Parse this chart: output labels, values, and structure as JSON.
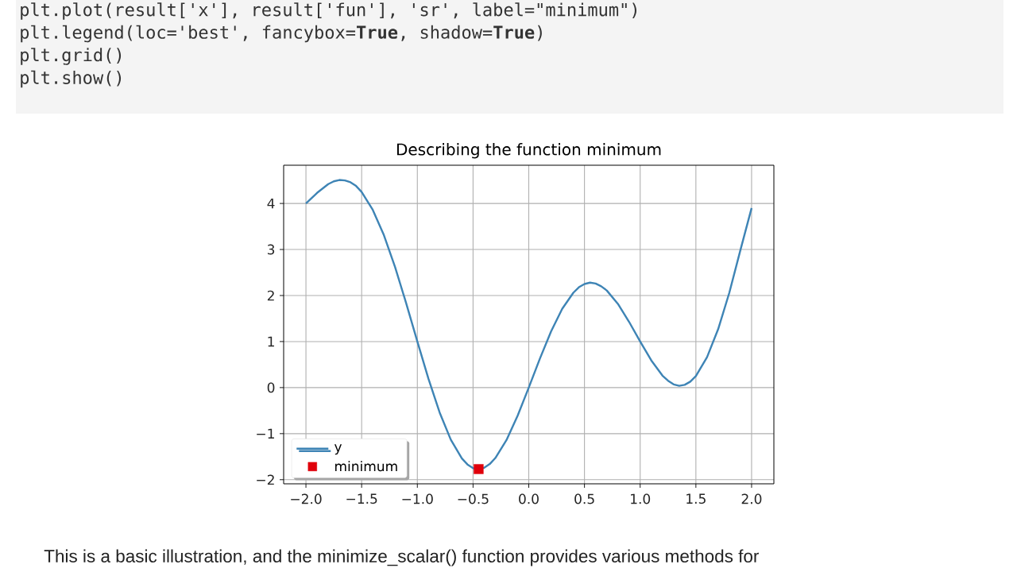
{
  "chart_data": {
    "type": "line",
    "title": "Describing the function minimum",
    "series": [
      {
        "name": "y",
        "color": "#3e84b5",
        "marker": "none",
        "line_style": "solid",
        "x": [
          -2.0,
          -1.9,
          -1.8,
          -1.75,
          -1.7,
          -1.65,
          -1.6,
          -1.55,
          -1.5,
          -1.4,
          -1.3,
          -1.2,
          -1.1,
          -1.0,
          -0.9,
          -0.8,
          -0.7,
          -0.6,
          -0.55,
          -0.5,
          -0.45,
          -0.4,
          -0.35,
          -0.3,
          -0.2,
          -0.1,
          0.0,
          0.1,
          0.2,
          0.3,
          0.4,
          0.45,
          0.5,
          0.55,
          0.6,
          0.65,
          0.7,
          0.8,
          0.9,
          1.0,
          1.1,
          1.2,
          1.25,
          1.3,
          1.35,
          1.4,
          1.45,
          1.5,
          1.6,
          1.7,
          1.8,
          1.9,
          2.0
        ],
        "values": [
          4.0,
          4.23,
          4.42,
          4.48,
          4.51,
          4.5,
          4.46,
          4.38,
          4.25,
          3.86,
          3.31,
          2.62,
          1.83,
          1.0,
          0.19,
          -0.54,
          -1.13,
          -1.54,
          -1.67,
          -1.75,
          -1.77,
          -1.74,
          -1.66,
          -1.53,
          -1.14,
          -0.61,
          0.0,
          0.63,
          1.22,
          1.71,
          2.06,
          2.18,
          2.25,
          2.28,
          2.26,
          2.2,
          2.11,
          1.82,
          1.43,
          1.0,
          0.59,
          0.26,
          0.15,
          0.07,
          0.04,
          0.06,
          0.13,
          0.25,
          0.66,
          1.27,
          2.06,
          2.99,
          3.9
        ]
      },
      {
        "name": "minimum",
        "type": "scatter",
        "color": "#e0000b",
        "marker": "square",
        "x": [
          -0.45
        ],
        "values": [
          -1.77
        ]
      }
    ],
    "xlim": [
      -2.2,
      2.2
    ],
    "ylim": [
      -2.09,
      4.83
    ],
    "xticks": [
      {
        "value": -2,
        "label": "−2.0"
      },
      {
        "value": -1.5,
        "label": "−1.5"
      },
      {
        "value": -1,
        "label": "−1.0"
      },
      {
        "value": -0.5,
        "label": "−0.5"
      },
      {
        "value": 0,
        "label": "0.0"
      },
      {
        "value": 0.5,
        "label": "0.5"
      },
      {
        "value": 1,
        "label": "1.0"
      },
      {
        "value": 1.5,
        "label": "1.5"
      },
      {
        "value": 2,
        "label": "2.0"
      }
    ],
    "yticks": [
      {
        "value": -2,
        "label": "−2"
      },
      {
        "value": -1,
        "label": "−1"
      },
      0,
      1,
      2,
      3,
      4
    ],
    "grid": true,
    "legend": "bottom left",
    "annotations": [
      "plt.plot(result['x'], result['fun'], 'sr', label=\"minimum\")",
      "plt.legend(loc='best', fancybox=**True**, shadow=**True**)",
      "plt.grid()",
      "plt.show()",
      "This is a basic illustration, and the minimize_scalar() function provides various methods for"
    ]
  }
}
